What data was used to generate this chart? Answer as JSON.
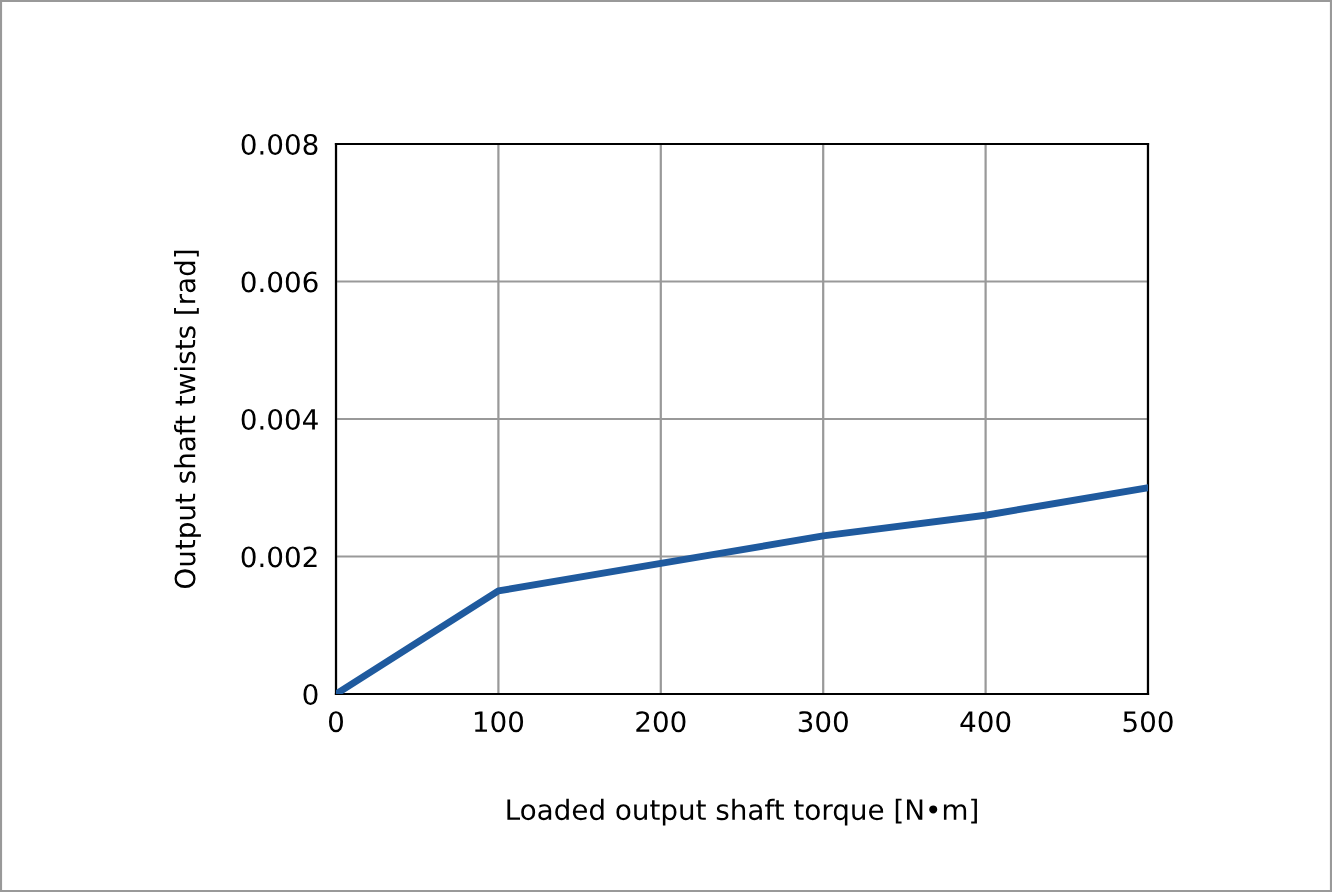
{
  "chart_data": {
    "type": "line",
    "xlabel": "Loaded output shaft torque [N•m]",
    "ylabel": "Output shaft twists [rad]",
    "x": [
      0,
      100,
      200,
      300,
      400,
      500
    ],
    "series": [
      {
        "color": "#1f5a9e",
        "values": [
          0,
          0.0015,
          0.0019,
          0.0023,
          0.0026,
          0.003
        ]
      }
    ],
    "xlim": [
      0,
      500
    ],
    "xticks": [
      0,
      100,
      200,
      300,
      400,
      500
    ],
    "ylim": [
      0,
      0.008
    ],
    "yticks": [
      0,
      0.002,
      0.004,
      0.006,
      0.008
    ],
    "grid": true,
    "line_style": "solid",
    "marker": "none"
  }
}
